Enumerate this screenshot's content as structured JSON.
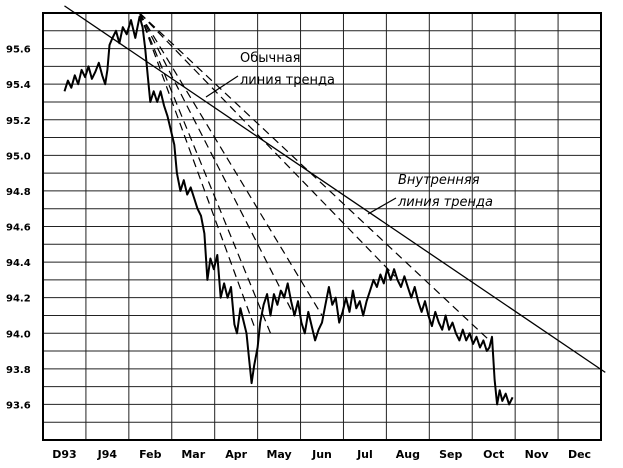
{
  "chart_data": {
    "type": "line",
    "ylim": [
      93.4,
      95.8
    ],
    "y_ticks": [
      "93.6",
      "93.8",
      "94.0",
      "94.2",
      "94.4",
      "94.6",
      "94.8",
      "95.0",
      "95.2",
      "95.4",
      "95.6"
    ],
    "y_tick_values": [
      93.6,
      93.8,
      94.0,
      94.2,
      94.4,
      94.6,
      94.8,
      95.0,
      95.2,
      95.4,
      95.6
    ],
    "x_ticks": [
      "D93",
      "J94",
      "Feb",
      "Mar",
      "Apr",
      "May",
      "Jun",
      "Jul",
      "Aug",
      "Sep",
      "Oct",
      "Nov",
      "Dec"
    ],
    "grid": true,
    "series": [
      {
        "values": [
          [
            0.0,
            95.36
          ],
          [
            0.08,
            95.42
          ],
          [
            0.16,
            95.38
          ],
          [
            0.24,
            95.45
          ],
          [
            0.32,
            95.4
          ],
          [
            0.4,
            95.48
          ],
          [
            0.48,
            95.44
          ],
          [
            0.56,
            95.5
          ],
          [
            0.64,
            95.43
          ],
          [
            0.72,
            95.47
          ],
          [
            0.8,
            95.52
          ],
          [
            0.88,
            95.45
          ],
          [
            0.95,
            95.4
          ],
          [
            1.0,
            95.48
          ],
          [
            1.05,
            95.62
          ],
          [
            1.12,
            95.66
          ],
          [
            1.2,
            95.7
          ],
          [
            1.28,
            95.63
          ],
          [
            1.36,
            95.72
          ],
          [
            1.45,
            95.68
          ],
          [
            1.55,
            95.76
          ],
          [
            1.65,
            95.66
          ],
          [
            1.75,
            95.78
          ],
          [
            1.82,
            95.72
          ],
          [
            1.88,
            95.6
          ],
          [
            1.94,
            95.45
          ],
          [
            2.0,
            95.3
          ],
          [
            2.08,
            95.36
          ],
          [
            2.16,
            95.3
          ],
          [
            2.24,
            95.36
          ],
          [
            2.32,
            95.28
          ],
          [
            2.4,
            95.22
          ],
          [
            2.48,
            95.14
          ],
          [
            2.56,
            95.06
          ],
          [
            2.62,
            94.9
          ],
          [
            2.7,
            94.8
          ],
          [
            2.78,
            94.86
          ],
          [
            2.86,
            94.78
          ],
          [
            2.94,
            94.82
          ],
          [
            3.02,
            94.76
          ],
          [
            3.1,
            94.7
          ],
          [
            3.18,
            94.66
          ],
          [
            3.26,
            94.56
          ],
          [
            3.33,
            94.3
          ],
          [
            3.4,
            94.42
          ],
          [
            3.48,
            94.36
          ],
          [
            3.56,
            94.44
          ],
          [
            3.64,
            94.2
          ],
          [
            3.72,
            94.28
          ],
          [
            3.8,
            94.2
          ],
          [
            3.88,
            94.26
          ],
          [
            3.96,
            94.05
          ],
          [
            4.02,
            94.0
          ],
          [
            4.1,
            94.14
          ],
          [
            4.18,
            94.06
          ],
          [
            4.24,
            94.0
          ],
          [
            4.3,
            93.86
          ],
          [
            4.36,
            93.72
          ],
          [
            4.42,
            93.82
          ],
          [
            4.5,
            93.92
          ],
          [
            4.56,
            94.06
          ],
          [
            4.64,
            94.16
          ],
          [
            4.72,
            94.22
          ],
          [
            4.8,
            94.1
          ],
          [
            4.88,
            94.22
          ],
          [
            4.96,
            94.16
          ],
          [
            5.04,
            94.24
          ],
          [
            5.12,
            94.2
          ],
          [
            5.2,
            94.28
          ],
          [
            5.28,
            94.18
          ],
          [
            5.36,
            94.1
          ],
          [
            5.44,
            94.18
          ],
          [
            5.52,
            94.06
          ],
          [
            5.6,
            94.0
          ],
          [
            5.68,
            94.12
          ],
          [
            5.76,
            94.04
          ],
          [
            5.84,
            93.96
          ],
          [
            5.92,
            94.02
          ],
          [
            6.0,
            94.06
          ],
          [
            6.08,
            94.16
          ],
          [
            6.16,
            94.26
          ],
          [
            6.24,
            94.16
          ],
          [
            6.32,
            94.2
          ],
          [
            6.4,
            94.06
          ],
          [
            6.48,
            94.12
          ],
          [
            6.56,
            94.2
          ],
          [
            6.64,
            94.12
          ],
          [
            6.72,
            94.24
          ],
          [
            6.8,
            94.14
          ],
          [
            6.88,
            94.18
          ],
          [
            6.96,
            94.1
          ],
          [
            7.04,
            94.18
          ],
          [
            7.12,
            94.24
          ],
          [
            7.2,
            94.3
          ],
          [
            7.28,
            94.26
          ],
          [
            7.36,
            94.33
          ],
          [
            7.44,
            94.28
          ],
          [
            7.52,
            94.36
          ],
          [
            7.6,
            94.3
          ],
          [
            7.68,
            94.36
          ],
          [
            7.76,
            94.3
          ],
          [
            7.84,
            94.26
          ],
          [
            7.92,
            94.32
          ],
          [
            8.0,
            94.26
          ],
          [
            8.08,
            94.2
          ],
          [
            8.16,
            94.26
          ],
          [
            8.24,
            94.18
          ],
          [
            8.32,
            94.12
          ],
          [
            8.4,
            94.18
          ],
          [
            8.48,
            94.1
          ],
          [
            8.56,
            94.04
          ],
          [
            8.64,
            94.12
          ],
          [
            8.72,
            94.06
          ],
          [
            8.8,
            94.02
          ],
          [
            8.88,
            94.1
          ],
          [
            8.96,
            94.02
          ],
          [
            9.04,
            94.06
          ],
          [
            9.12,
            94.0
          ],
          [
            9.2,
            93.96
          ],
          [
            9.28,
            94.02
          ],
          [
            9.36,
            93.96
          ],
          [
            9.44,
            94.0
          ],
          [
            9.52,
            93.94
          ],
          [
            9.6,
            93.98
          ],
          [
            9.68,
            93.92
          ],
          [
            9.76,
            93.96
          ],
          [
            9.84,
            93.9
          ],
          [
            9.9,
            93.92
          ],
          [
            9.96,
            93.98
          ],
          [
            10.02,
            93.74
          ],
          [
            10.08,
            93.6
          ],
          [
            10.14,
            93.68
          ],
          [
            10.2,
            93.62
          ],
          [
            10.28,
            93.66
          ],
          [
            10.36,
            93.6
          ],
          [
            10.44,
            93.64
          ]
        ]
      }
    ],
    "trend_lines": [
      {
        "style": "solid",
        "from": [
          0.0,
          95.84
        ],
        "to": [
          12.6,
          93.78
        ]
      },
      {
        "style": "dashed",
        "from": [
          1.75,
          95.8
        ],
        "to": [
          9.9,
          93.96
        ]
      },
      {
        "style": "dashed",
        "from": [
          1.75,
          95.8
        ],
        "to": [
          7.7,
          94.32
        ]
      },
      {
        "style": "dashed",
        "from": [
          1.75,
          95.8
        ],
        "to": [
          6.0,
          94.1
        ]
      },
      {
        "style": "dashed",
        "from": [
          1.75,
          95.8
        ],
        "to": [
          5.35,
          94.1
        ]
      },
      {
        "style": "dashed",
        "from": [
          1.75,
          95.8
        ],
        "to": [
          4.8,
          94.0
        ]
      },
      {
        "style": "dashed",
        "from": [
          1.75,
          95.8
        ],
        "to": [
          4.45,
          94.02
        ]
      }
    ],
    "annotations": [
      {
        "lines": [
          "Обычная",
          "линия тренда"
        ],
        "italic": false
      },
      {
        "lines": [
          "Внутренняя",
          "линия тренда"
        ],
        "italic": true
      }
    ]
  }
}
